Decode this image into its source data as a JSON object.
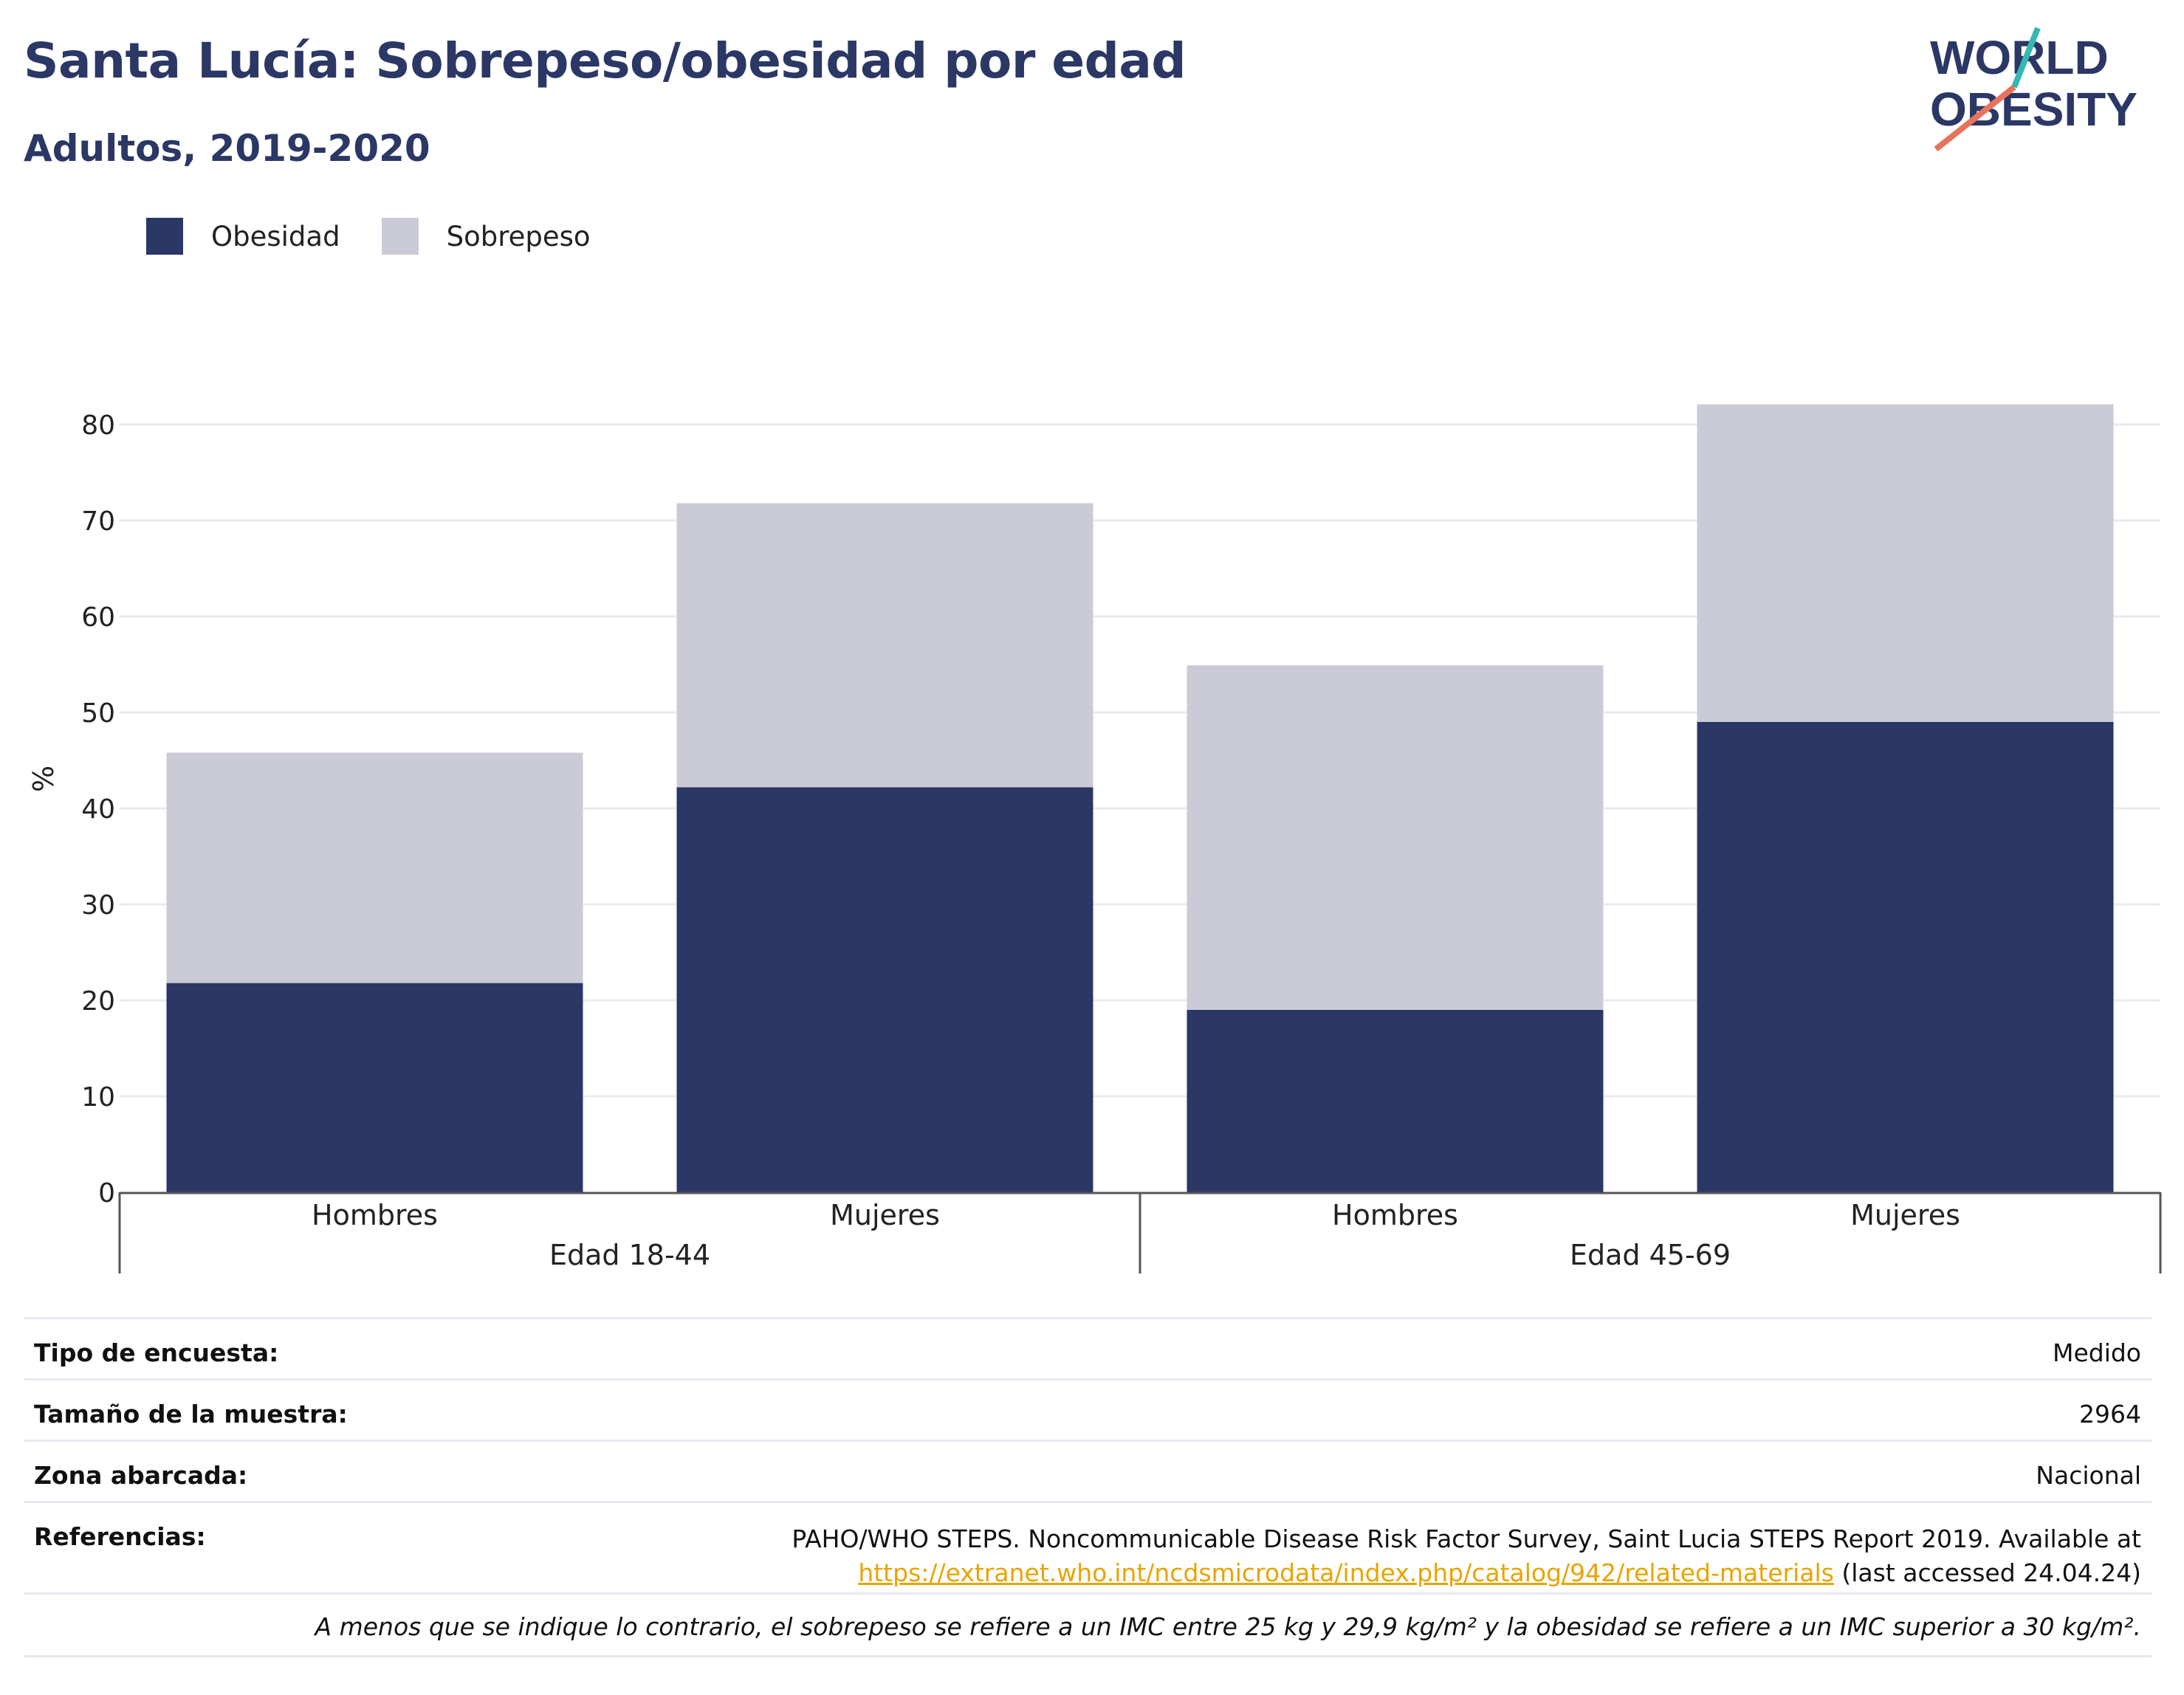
{
  "title": "Santa Lucía: Sobrepeso/obesidad por edad",
  "subtitle": "Adultos, 2019-2020",
  "logo": {
    "line1": "WORLD",
    "line2": "OBESITY"
  },
  "legend": [
    {
      "label": "Obesidad",
      "color": "#2b3765"
    },
    {
      "label": "Sobrepeso",
      "color": "#cacbd7"
    }
  ],
  "chart_data": {
    "type": "bar",
    "stacked": true,
    "ylabel": "%",
    "ylim": [
      0,
      85
    ],
    "yticks": [
      0,
      10,
      20,
      30,
      40,
      50,
      60,
      70,
      80
    ],
    "grid": true,
    "legend_position": "top-left",
    "groups": [
      {
        "label": "Edad 18-44",
        "categories": [
          "Hombres",
          "Mujeres"
        ]
      },
      {
        "label": "Edad 45-69",
        "categories": [
          "Hombres",
          "Mujeres"
        ]
      }
    ],
    "categories": [
      "Hombres",
      "Mujeres",
      "Hombres",
      "Mujeres"
    ],
    "series": [
      {
        "name": "Obesidad",
        "color": "#2b3765",
        "values": [
          21.8,
          42.2,
          19.0,
          49.0
        ]
      },
      {
        "name": "Sobrepeso",
        "color": "#cacbd7",
        "values": [
          24.0,
          29.6,
          35.9,
          33.1
        ]
      }
    ]
  },
  "info": {
    "survey_type": {
      "label": "Tipo de encuesta:",
      "value": "Medido"
    },
    "sample_size": {
      "label": "Tamaño de la muestra:",
      "value": "2964"
    },
    "area": {
      "label": "Zona abarcada:",
      "value": "Nacional"
    },
    "references": {
      "label": "Referencias:",
      "text": "PAHO/WHO STEPS. Noncommunicable Disease Risk Factor Survey, Saint Lucia STEPS Report 2019. Available at",
      "link": "https://extranet.who.int/ncdsmicrodata/index.php/catalog/942/related-materials",
      "suffix": " (last accessed 24.04.24)"
    },
    "note": "A menos que se indique lo contrario, el sobrepeso se refiere a un IMC entre 25 kg y 29,9 kg/m² y la obesidad se refiere a un IMC superior a 30 kg/m²."
  }
}
